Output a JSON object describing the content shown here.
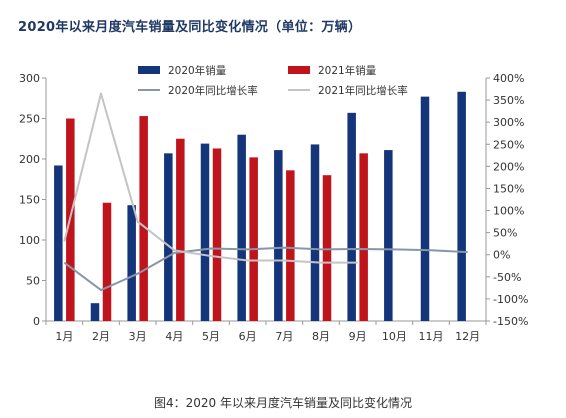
{
  "title": "2020年以来月度汽车销量及同比变化情况（单位：万辆）",
  "caption": "图4：2020 年以来月度汽车销量及同比变化情况",
  "colors": {
    "bar2020": "#15357a",
    "bar2021": "#c0141c",
    "line2020": "#8896a8",
    "line2021": "#c4c4c4",
    "title": "#1f3864"
  },
  "chart_data": {
    "type": "bar",
    "categories": [
      "1月",
      "2月",
      "3月",
      "4月",
      "5月",
      "6月",
      "7月",
      "8月",
      "9月",
      "10月",
      "11月",
      "12月"
    ],
    "series": [
      {
        "name": "2020年销量",
        "type": "bar",
        "axis": "left",
        "values": [
          192,
          22,
          143,
          207,
          219,
          230,
          211,
          218,
          257,
          211,
          277,
          283
        ]
      },
      {
        "name": "2021年销量",
        "type": "bar",
        "axis": "left",
        "values": [
          250,
          146,
          253,
          225,
          213,
          202,
          186,
          180,
          207,
          null,
          null,
          null
        ]
      },
      {
        "name": "2020年同比增长率",
        "type": "line",
        "axis": "right",
        "values": [
          -18,
          -80,
          -43,
          4,
          14,
          12,
          16,
          12,
          13,
          12,
          10,
          6
        ]
      },
      {
        "name": "2021年同比增长率",
        "type": "line",
        "axis": "right",
        "values": [
          30,
          365,
          75,
          10,
          -3,
          -13,
          -13,
          -18,
          -18,
          null,
          null,
          null
        ]
      }
    ],
    "yleft": {
      "min": 0,
      "max": 300,
      "ticks": [
        0,
        50,
        100,
        150,
        200,
        250,
        300
      ]
    },
    "yright": {
      "min": -150,
      "max": 400,
      "ticks": [
        -150,
        -100,
        -50,
        0,
        50,
        100,
        150,
        200,
        250,
        300,
        350,
        400
      ],
      "unit": "%"
    },
    "legend_position": "top-center",
    "grid": false
  }
}
